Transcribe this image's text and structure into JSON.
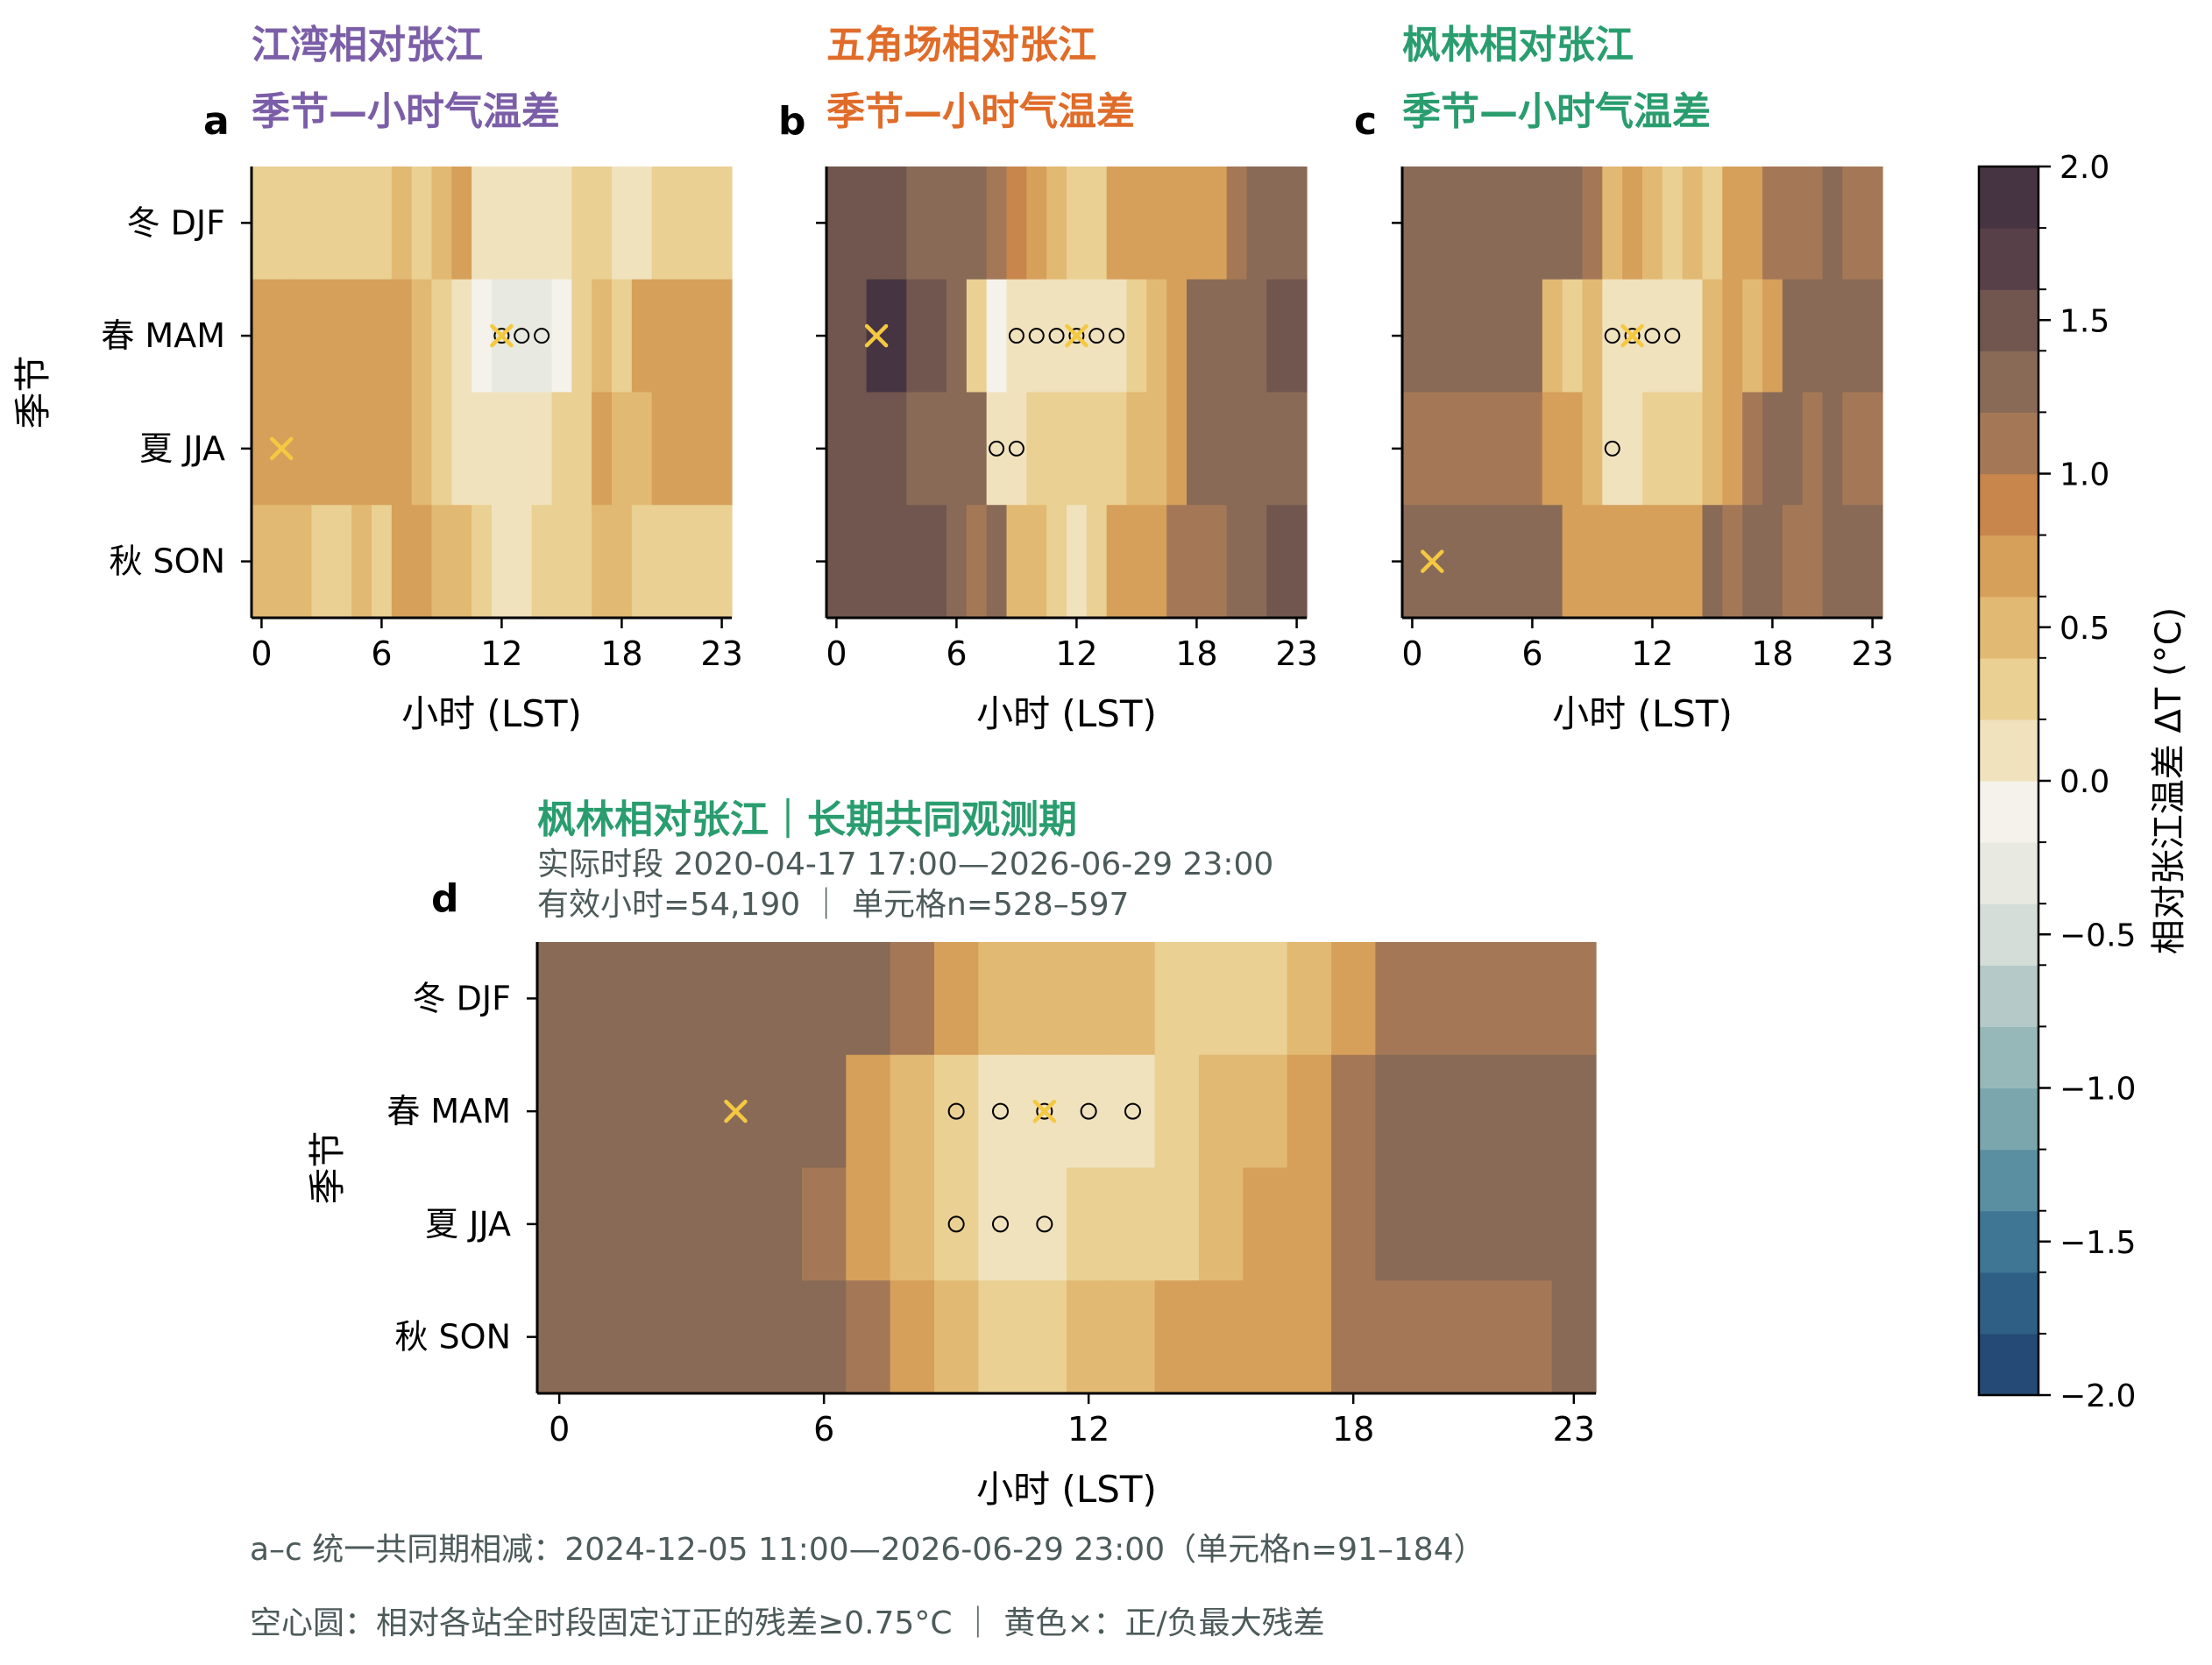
{
  "figure": {
    "panels": {
      "a": {
        "letter": "a",
        "title_line1": "江湾相对张江",
        "title_line2": "季节—小时气温差",
        "title_color": "#7b5ea7"
      },
      "b": {
        "letter": "b",
        "title_line1": "五角场相对张江",
        "title_line2": "季节—小时气温差",
        "title_color": "#e06c2a"
      },
      "c": {
        "letter": "c",
        "title_line1": "枫林相对张江",
        "title_line2": "季节—小时气温差",
        "title_color": "#2a9d6f"
      },
      "d": {
        "letter": "d",
        "title_line1": "枫林相对张江｜长期共同观测期",
        "subtitle_line1": "实际时段 2020-04-17 17:00—2026-06-29 23:00",
        "subtitle_line2": "有效小时=54,190 ｜ 单元格n=528–597",
        "title_color": "#2a9d6f",
        "subtitle_color": "#4d5a5a"
      }
    },
    "footnote_line1": "a–c 统一共同期相减：2024-12-05 11:00—2026-06-29 23:00（单元格n=91–184）",
    "footnote_line2": "空心圆：相对各站全时段固定订正的残差≥0.75°C ｜ 黄色×：正/负最大残差",
    "footnote_color": "#4d5a5a",
    "marker_color": "#f5c842"
  },
  "chart_data": [
    {
      "type": "heatmap",
      "panel": "a",
      "title": "江湾相对张江 季节—小时气温差",
      "xlabel": "小时 (LST)",
      "ylabel": "季节",
      "x": [
        0,
        1,
        2,
        3,
        4,
        5,
        6,
        7,
        8,
        9,
        10,
        11,
        12,
        13,
        14,
        15,
        16,
        17,
        18,
        19,
        20,
        21,
        22,
        23
      ],
      "x_ticks": [
        0,
        6,
        12,
        18,
        23
      ],
      "y_categories": [
        "冬 DJF",
        "春 MAM",
        "夏 JJA",
        "秋 SON"
      ],
      "values": [
        [
          0.2,
          0.2,
          0.2,
          0.2,
          0.2,
          0.2,
          0.2,
          0.5,
          0.3,
          0.5,
          0.6,
          0.0,
          0.0,
          0.0,
          0.0,
          0.0,
          0.2,
          0.2,
          0.0,
          0.0,
          0.3,
          0.3,
          0.3,
          0.3
        ],
        [
          0.7,
          0.7,
          0.7,
          0.7,
          0.7,
          0.7,
          0.7,
          0.7,
          0.5,
          0.2,
          0.1,
          -0.1,
          -0.4,
          -0.4,
          -0.4,
          -0.1,
          0.3,
          0.5,
          0.3,
          0.6,
          0.6,
          0.6,
          0.6,
          0.6
        ],
        [
          0.7,
          0.7,
          0.7,
          0.7,
          0.7,
          0.7,
          0.7,
          0.7,
          0.5,
          0.3,
          0.0,
          0.0,
          0.0,
          0.0,
          0.0,
          0.2,
          0.3,
          0.6,
          0.5,
          0.5,
          0.7,
          0.7,
          0.7,
          0.7
        ],
        [
          0.5,
          0.5,
          0.5,
          0.3,
          0.3,
          0.5,
          0.3,
          0.7,
          0.7,
          0.5,
          0.5,
          0.3,
          0.0,
          0.0,
          0.3,
          0.3,
          0.3,
          0.5,
          0.5,
          0.4,
          0.4,
          0.4,
          0.4,
          0.4
        ]
      ],
      "circles": [
        [
          1,
          12
        ],
        [
          1,
          13
        ],
        [
          1,
          14
        ]
      ],
      "crosses": [
        [
          1,
          12
        ],
        [
          2,
          1
        ]
      ],
      "vmin": -2.0,
      "vmax": 2.0
    },
    {
      "type": "heatmap",
      "panel": "b",
      "title": "五角场相对张江 季节—小时气温差",
      "xlabel": "小时 (LST)",
      "ylabel": "季节",
      "x": [
        0,
        1,
        2,
        3,
        4,
        5,
        6,
        7,
        8,
        9,
        10,
        11,
        12,
        13,
        14,
        15,
        16,
        17,
        18,
        19,
        20,
        21,
        22,
        23
      ],
      "x_ticks": [
        0,
        6,
        12,
        18,
        23
      ],
      "y_categories": [
        "冬 DJF",
        "春 MAM",
        "夏 JJA",
        "秋 SON"
      ],
      "values": [
        [
          1.5,
          1.5,
          1.5,
          1.5,
          1.2,
          1.2,
          1.2,
          1.2,
          1.0,
          0.9,
          0.6,
          0.5,
          0.4,
          0.4,
          0.6,
          0.6,
          0.7,
          0.7,
          0.7,
          0.7,
          1.0,
          1.2,
          1.2,
          1.2
        ],
        [
          1.5,
          1.5,
          1.9,
          1.9,
          1.5,
          1.5,
          1.2,
          0.3,
          -0.1,
          0.0,
          0.0,
          0.0,
          0.0,
          0.0,
          0.0,
          0.3,
          0.5,
          0.6,
          1.2,
          1.2,
          1.2,
          1.2,
          1.5,
          1.5
        ],
        [
          1.5,
          1.5,
          1.5,
          1.5,
          1.2,
          1.2,
          1.2,
          1.2,
          0.0,
          0.0,
          0.3,
          0.3,
          0.3,
          0.3,
          0.4,
          0.5,
          0.5,
          0.7,
          1.2,
          1.2,
          1.2,
          1.2,
          1.3,
          1.3
        ],
        [
          1.5,
          1.5,
          1.5,
          1.5,
          1.5,
          1.5,
          1.2,
          1.0,
          1.2,
          0.5,
          0.5,
          0.4,
          0.1,
          0.4,
          0.6,
          0.6,
          0.7,
          1.0,
          1.0,
          1.0,
          1.2,
          1.2,
          1.5,
          1.5
        ]
      ],
      "circles": [
        [
          1,
          9
        ],
        [
          1,
          10
        ],
        [
          1,
          11
        ],
        [
          1,
          12
        ],
        [
          1,
          13
        ],
        [
          1,
          14
        ],
        [
          2,
          8
        ],
        [
          2,
          9
        ]
      ],
      "crosses": [
        [
          1,
          12
        ],
        [
          1,
          2
        ]
      ],
      "vmin": -2.0,
      "vmax": 2.0
    },
    {
      "type": "heatmap",
      "panel": "c",
      "title": "枫林相对张江 季节—小时气温差",
      "xlabel": "小时 (LST)",
      "ylabel": "季节",
      "x": [
        0,
        1,
        2,
        3,
        4,
        5,
        6,
        7,
        8,
        9,
        10,
        11,
        12,
        13,
        14,
        15,
        16,
        17,
        18,
        19,
        20,
        21,
        22,
        23
      ],
      "x_ticks": [
        0,
        6,
        12,
        18,
        23
      ],
      "y_categories": [
        "冬 DJF",
        "春 MAM",
        "夏 JJA",
        "秋 SON"
      ],
      "values": [
        [
          1.2,
          1.2,
          1.2,
          1.2,
          1.2,
          1.2,
          1.2,
          1.2,
          1.2,
          1.0,
          0.5,
          0.6,
          0.5,
          0.3,
          0.5,
          0.4,
          0.6,
          0.7,
          1.0,
          1.0,
          1.0,
          1.2,
          1.0,
          1.0
        ],
        [
          1.2,
          1.2,
          1.2,
          1.2,
          1.2,
          1.2,
          1.2,
          0.5,
          0.3,
          0.5,
          0.0,
          0.0,
          0.0,
          0.0,
          0.0,
          0.5,
          0.7,
          0.5,
          0.8,
          1.2,
          1.2,
          1.3,
          1.2,
          1.2
        ],
        [
          1.0,
          1.0,
          1.0,
          1.0,
          1.0,
          1.0,
          1.0,
          0.7,
          0.6,
          0.5,
          0.0,
          0.0,
          0.3,
          0.3,
          0.4,
          0.5,
          0.6,
          1.0,
          1.2,
          1.2,
          1.0,
          1.2,
          1.0,
          1.0
        ],
        [
          1.2,
          1.2,
          1.2,
          1.2,
          1.2,
          1.2,
          1.2,
          1.2,
          0.6,
          0.7,
          0.7,
          0.7,
          0.7,
          0.7,
          0.7,
          1.2,
          1.0,
          1.2,
          1.3,
          1.0,
          1.0,
          1.2,
          1.2,
          1.2
        ]
      ],
      "circles": [
        [
          1,
          10
        ],
        [
          1,
          11
        ],
        [
          1,
          12
        ],
        [
          1,
          13
        ],
        [
          2,
          10
        ]
      ],
      "crosses": [
        [
          1,
          11
        ],
        [
          3,
          1
        ]
      ],
      "vmin": -2.0,
      "vmax": 2.0
    },
    {
      "type": "heatmap",
      "panel": "d",
      "title": "枫林相对张江｜长期共同观测期",
      "xlabel": "小时 (LST)",
      "ylabel": "季节",
      "x": [
        0,
        1,
        2,
        3,
        4,
        5,
        6,
        7,
        8,
        9,
        10,
        11,
        12,
        13,
        14,
        15,
        16,
        17,
        18,
        19,
        20,
        21,
        22,
        23
      ],
      "x_ticks": [
        0,
        6,
        12,
        18,
        23
      ],
      "y_categories": [
        "冬 DJF",
        "春 MAM",
        "夏 JJA",
        "秋 SON"
      ],
      "values": [
        [
          1.2,
          1.2,
          1.2,
          1.2,
          1.2,
          1.2,
          1.2,
          1.2,
          1.0,
          0.6,
          0.5,
          0.5,
          0.5,
          0.5,
          0.3,
          0.3,
          0.3,
          0.5,
          0.7,
          1.0,
          1.0,
          1.0,
          1.0,
          1.0
        ],
        [
          1.2,
          1.2,
          1.2,
          1.2,
          1.2,
          1.2,
          1.2,
          0.7,
          0.5,
          0.3,
          0.0,
          0.0,
          0.0,
          0.1,
          0.4,
          0.5,
          0.5,
          0.7,
          1.0,
          1.2,
          1.2,
          1.2,
          1.2,
          1.2
        ],
        [
          1.2,
          1.2,
          1.2,
          1.2,
          1.2,
          1.2,
          1.0,
          0.7,
          0.5,
          0.3,
          0.0,
          0.0,
          0.2,
          0.2,
          0.4,
          0.5,
          0.7,
          0.7,
          1.0,
          1.2,
          1.2,
          1.2,
          1.2,
          1.2
        ],
        [
          1.2,
          1.2,
          1.2,
          1.2,
          1.2,
          1.2,
          1.2,
          1.0,
          0.8,
          0.5,
          0.3,
          0.3,
          0.5,
          0.5,
          0.6,
          0.6,
          0.7,
          0.8,
          1.0,
          1.0,
          1.0,
          1.0,
          1.0,
          1.2
        ]
      ],
      "circles": [
        [
          1,
          9
        ],
        [
          1,
          10
        ],
        [
          1,
          11
        ],
        [
          1,
          12
        ],
        [
          1,
          13
        ],
        [
          2,
          9
        ],
        [
          2,
          10
        ],
        [
          2,
          11
        ]
      ],
      "crosses": [
        [
          1,
          11
        ],
        [
          1,
          4
        ]
      ],
      "vmin": -2.0,
      "vmax": 2.0
    }
  ],
  "colorbar": {
    "label": "相对张江温差 ΔT (°C)",
    "vmin": -2.0,
    "vmax": 2.0,
    "step": 0.2,
    "ticks": [
      2.0,
      1.5,
      1.0,
      0.5,
      0.0,
      -0.5,
      -1.0,
      -1.5,
      -2.0
    ],
    "tick_labels": [
      "2.0",
      "1.5",
      "1.0",
      "0.5",
      "0.0",
      "−0.5",
      "−1.0",
      "−1.5",
      "−2.0"
    ],
    "colors": [
      "#244a75",
      "#2f5f85",
      "#3f7693",
      "#5a8fa1",
      "#7ba6ad",
      "#97b8b9",
      "#b5cac8",
      "#d4ddd8",
      "#e8e9e0",
      "#f4f2ea",
      "#f0e2bd",
      "#ead092",
      "#e2b972",
      "#d6a05a",
      "#c8864c",
      "#a47857",
      "#896a56",
      "#70564e",
      "#574047",
      "#463442"
    ]
  }
}
